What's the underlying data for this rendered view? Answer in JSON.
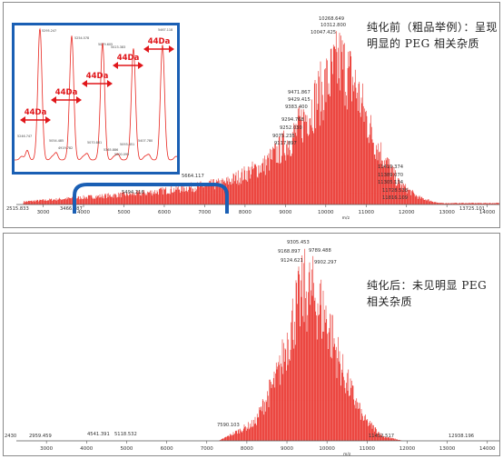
{
  "colors": {
    "spectrum": "#e8261f",
    "frame": "#1a5fb4",
    "arrow": "#e0161a",
    "axis": "#555555"
  },
  "chart_data": [
    {
      "type": "line",
      "xlabel": "m/z",
      "x_ticks": [
        "3000",
        "4000",
        "5000",
        "6000",
        "7000",
        "8000",
        "9000",
        "10000",
        "11000",
        "12000",
        "13000",
        "14000"
      ],
      "xlim": [
        2515,
        14300
      ],
      "envelope": {
        "x": [
          2515,
          4000,
          5500,
          7500,
          8500,
          9200,
          9800,
          10200,
          10350,
          10700,
          11200,
          11800,
          12300,
          12800
        ],
        "y": [
          0.02,
          0.05,
          0.08,
          0.15,
          0.28,
          0.48,
          0.75,
          0.93,
          1.0,
          0.85,
          0.45,
          0.15,
          0.05,
          0.01
        ]
      },
      "peak_labels": [
        "2515.833",
        "3466.587",
        "5407.300",
        "5494.216",
        "5664.117",
        "10268.649",
        "10312.800",
        "10047.425",
        "9471.867",
        "9429.415",
        "9383.400",
        "9294.768",
        "9252.030",
        "9075.235",
        "9117.897",
        "11419.374",
        "11389.070",
        "11305.134",
        "11728.538",
        "11816.109",
        "13725.101"
      ],
      "note": "纯化前（粗品举例）：呈现明显的 PEG 相关杂质",
      "inset": {
        "arrow_label": "44Da",
        "arrow_count": 5,
        "peak_labels": [
          "5295.247",
          "5254.578",
          "5079.605",
          "5023.383",
          "5467.118",
          "5246.747",
          "5054.485",
          "4919.782",
          "5070.861",
          "5365.886",
          "5093.451",
          "5407.780",
          "5000.095"
        ]
      }
    },
    {
      "type": "line",
      "xlabel": "m/z",
      "x_ticks": [
        "3000",
        "4000",
        "5000",
        "6000",
        "7000",
        "8000",
        "9000",
        "10000",
        "11000",
        "12000",
        "13000",
        "14000"
      ],
      "xlim": [
        2430,
        14300
      ],
      "envelope": {
        "x": [
          7300,
          8200,
          8800,
          9200,
          9450,
          9700,
          10000,
          10400,
          10900,
          11400,
          11900
        ],
        "y": [
          0.0,
          0.12,
          0.45,
          0.85,
          1.0,
          0.95,
          0.8,
          0.45,
          0.15,
          0.03,
          0.0
        ]
      },
      "peak_labels": [
        "2430",
        "2959.459",
        "4541.391",
        "5118.532",
        "7590.103",
        "9305.453",
        "9168.897",
        "9789.488",
        "9124.621",
        "9902.297",
        "11432.517",
        "12938.196"
      ],
      "note": "纯化后：未见明显 PEG 相关杂质"
    }
  ]
}
